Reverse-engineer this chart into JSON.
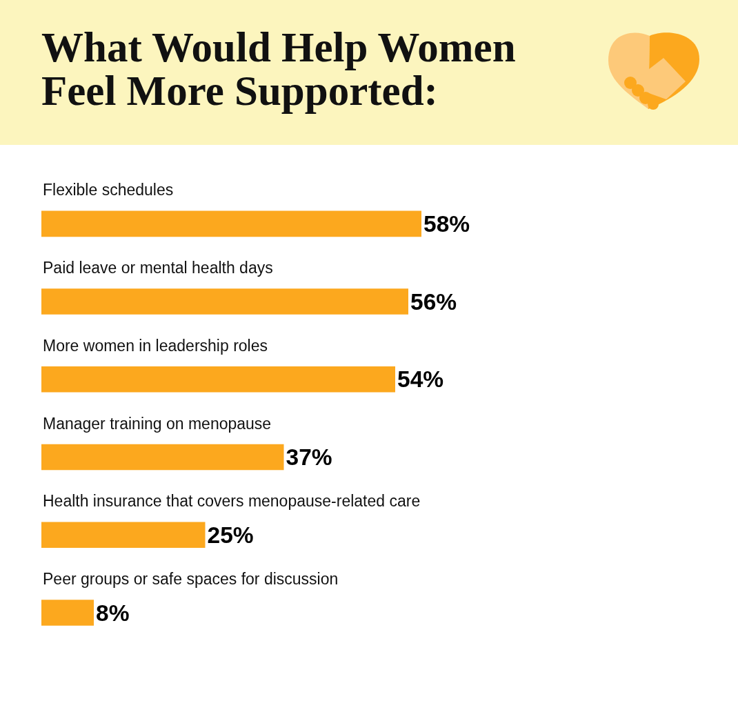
{
  "chart_data": {
    "type": "bar",
    "orientation": "horizontal",
    "title": "What Would Help Women Feel More Supported:",
    "categories": [
      "Flexible schedules",
      "Paid leave or mental health days",
      "More women in leadership roles",
      "Manager training on menopause",
      "Health insurance that covers menopause-related care",
      "Peer groups or safe spaces for discussion"
    ],
    "values": [
      58,
      56,
      54,
      37,
      25,
      8
    ],
    "value_labels": [
      "58%",
      "56%",
      "54%",
      "37%",
      "25%",
      "8%"
    ],
    "color": "#fca81e"
  }
}
